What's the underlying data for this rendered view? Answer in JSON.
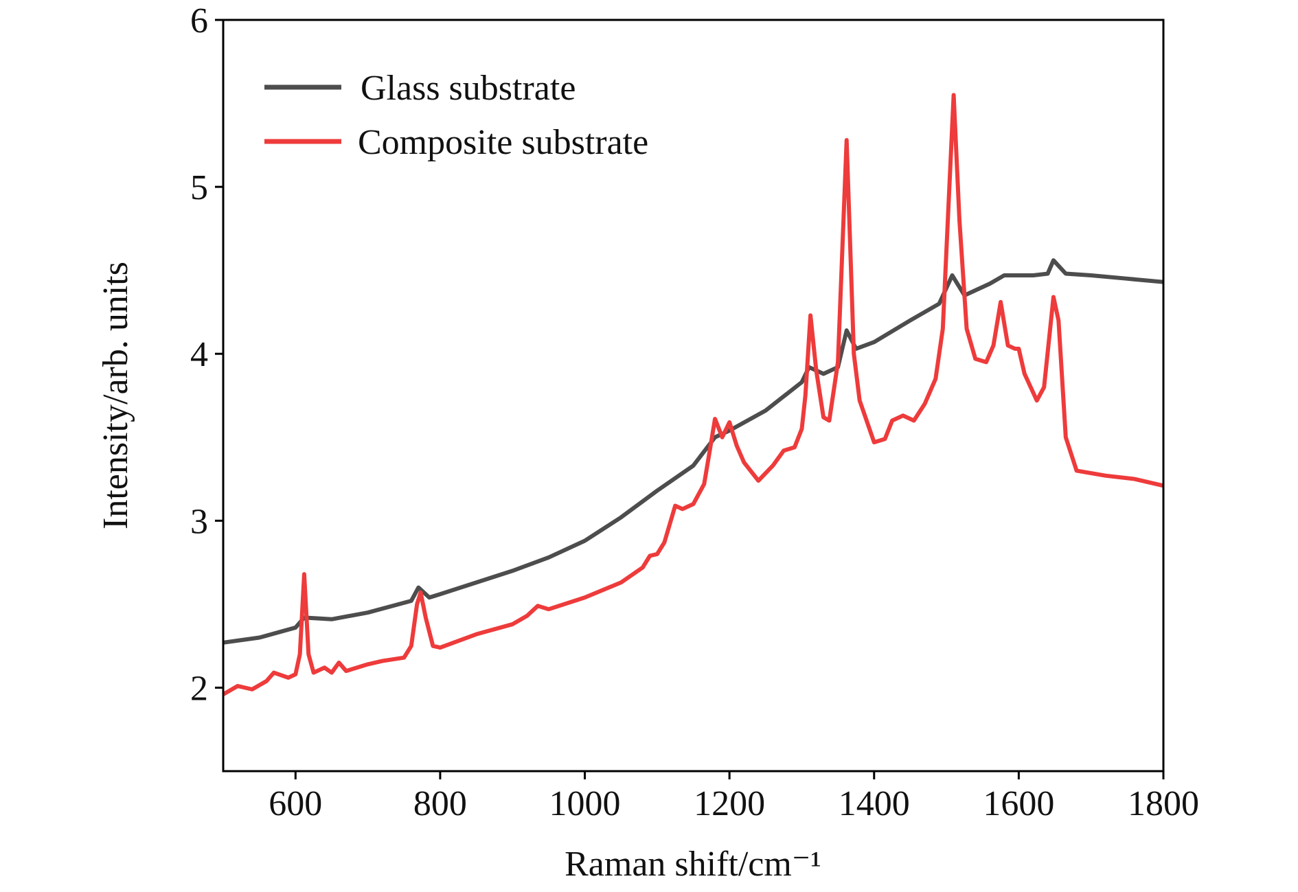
{
  "chart_data": {
    "type": "line",
    "xlabel": "Raman shift/cm⁻¹",
    "ylabel": "Intensity/arb. units",
    "xlim": [
      500,
      1800
    ],
    "ylim": [
      1.5,
      6
    ],
    "xticks": [
      600,
      800,
      1000,
      1200,
      1400,
      1600,
      1800
    ],
    "yticks": [
      2,
      3,
      4,
      5,
      6
    ],
    "legend": "upper left",
    "series": [
      {
        "name": "Glass substrate",
        "color": "#4d4d4d",
        "x": [
          500,
          550,
          600,
          612,
          650,
          700,
          760,
          770,
          785,
          800,
          850,
          900,
          950,
          1000,
          1050,
          1100,
          1150,
          1180,
          1200,
          1250,
          1300,
          1310,
          1330,
          1350,
          1362,
          1375,
          1400,
          1450,
          1490,
          1508,
          1525,
          1560,
          1580,
          1620,
          1640,
          1648,
          1665,
          1700,
          1750,
          1800
        ],
        "values": [
          2.27,
          2.3,
          2.36,
          2.42,
          2.41,
          2.45,
          2.52,
          2.6,
          2.54,
          2.56,
          2.63,
          2.7,
          2.78,
          2.88,
          3.02,
          3.18,
          3.33,
          3.5,
          3.54,
          3.66,
          3.83,
          3.92,
          3.88,
          3.92,
          4.14,
          4.03,
          4.07,
          4.2,
          4.3,
          4.47,
          4.35,
          4.42,
          4.47,
          4.47,
          4.48,
          4.56,
          4.48,
          4.47,
          4.45,
          4.43
        ]
      },
      {
        "name": "Composite substrate",
        "color": "#ee3b3b",
        "x": [
          500,
          520,
          540,
          560,
          570,
          590,
          600,
          606,
          612,
          618,
          625,
          640,
          650,
          660,
          670,
          700,
          720,
          750,
          760,
          768,
          773,
          780,
          790,
          800,
          850,
          900,
          920,
          935,
          950,
          1000,
          1050,
          1080,
          1090,
          1100,
          1110,
          1125,
          1135,
          1150,
          1165,
          1172,
          1180,
          1190,
          1200,
          1210,
          1220,
          1240,
          1260,
          1275,
          1290,
          1300,
          1305,
          1312,
          1320,
          1330,
          1338,
          1350,
          1362,
          1372,
          1380,
          1400,
          1415,
          1425,
          1440,
          1455,
          1470,
          1485,
          1495,
          1503,
          1510,
          1518,
          1528,
          1540,
          1555,
          1565,
          1575,
          1585,
          1595,
          1600,
          1608,
          1625,
          1635,
          1648,
          1655,
          1665,
          1680,
          1720,
          1760,
          1800
        ],
        "values": [
          1.96,
          2.01,
          1.99,
          2.04,
          2.09,
          2.06,
          2.08,
          2.2,
          2.68,
          2.2,
          2.09,
          2.12,
          2.09,
          2.15,
          2.1,
          2.14,
          2.16,
          2.18,
          2.25,
          2.5,
          2.57,
          2.42,
          2.25,
          2.24,
          2.32,
          2.38,
          2.43,
          2.49,
          2.47,
          2.54,
          2.63,
          2.72,
          2.79,
          2.8,
          2.87,
          3.09,
          3.07,
          3.1,
          3.22,
          3.4,
          3.61,
          3.5,
          3.59,
          3.45,
          3.35,
          3.24,
          3.33,
          3.42,
          3.44,
          3.55,
          3.75,
          4.23,
          3.9,
          3.62,
          3.6,
          3.95,
          5.28,
          4.0,
          3.72,
          3.47,
          3.49,
          3.6,
          3.63,
          3.6,
          3.7,
          3.85,
          4.15,
          4.9,
          5.55,
          4.8,
          4.15,
          3.97,
          3.95,
          4.05,
          4.31,
          4.05,
          4.03,
          4.03,
          3.88,
          3.72,
          3.8,
          4.34,
          4.2,
          3.5,
          3.3,
          3.27,
          3.25,
          3.21
        ]
      }
    ]
  }
}
